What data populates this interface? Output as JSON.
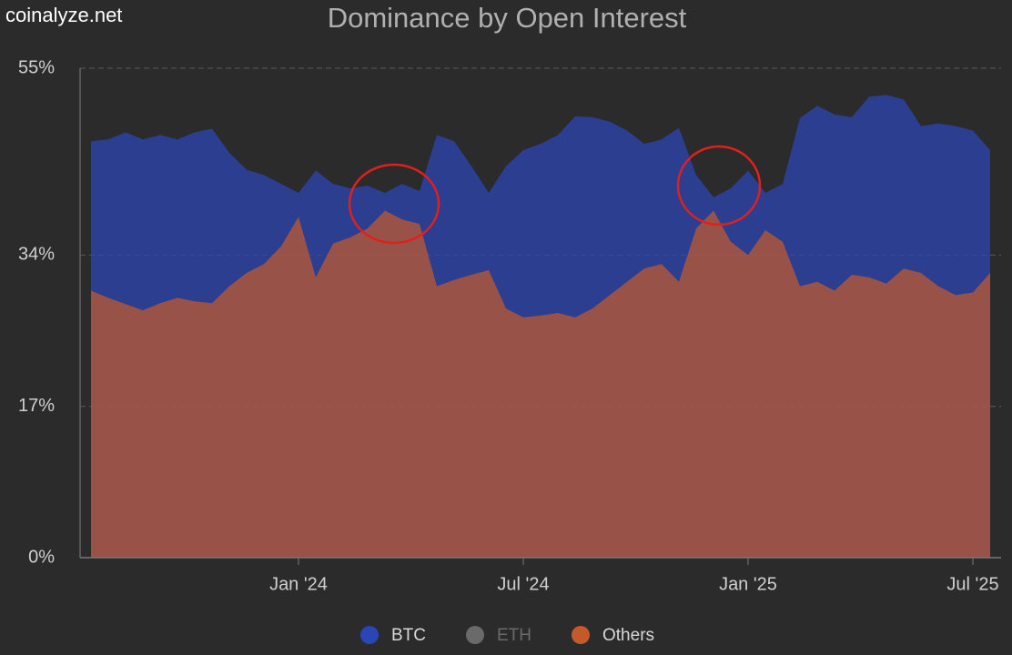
{
  "chart_data": {
    "type": "area",
    "title": "Dominance by Open Interest",
    "watermark": "coinalyze.net",
    "categories": [
      null,
      null,
      null,
      null,
      null,
      null,
      null,
      null,
      null,
      null,
      null,
      null,
      "Jan '24",
      null,
      null,
      null,
      null,
      null,
      null,
      null,
      null,
      null,
      null,
      null,
      null,
      "Jul '24",
      null,
      null,
      null,
      null,
      null,
      null,
      null,
      null,
      null,
      null,
      null,
      null,
      "Jan '25",
      null,
      null,
      null,
      null,
      null,
      null,
      null,
      null,
      null,
      null,
      null,
      null,
      "Jul '25",
      null
    ],
    "ylim": [
      0,
      55
    ],
    "yticks": [
      {
        "value": 0,
        "label": "0%"
      },
      {
        "value": 17,
        "label": "17%"
      },
      {
        "value": 34,
        "label": "34%"
      },
      {
        "value": 55,
        "label": "55%"
      }
    ],
    "grid": true,
    "series": [
      {
        "name": "BTC",
        "color": "#2b45b5",
        "visible": true,
        "values": [
          46.8,
          47.0,
          47.8,
          47.0,
          47.5,
          47.0,
          47.8,
          48.2,
          45.5,
          43.6,
          43.0,
          42.0,
          41.0,
          43.5,
          42.0,
          41.5,
          41.8,
          41.0,
          42.0,
          41.2,
          47.5,
          46.8,
          44.0,
          41.0,
          44.0,
          45.8,
          46.5,
          47.5,
          49.6,
          49.5,
          49.0,
          48.0,
          46.5,
          47.0,
          48.3,
          43.0,
          40.5,
          41.5,
          43.5,
          41.0,
          42.0,
          49.4,
          50.8,
          49.8,
          49.5,
          51.8,
          52.0,
          51.5,
          48.5,
          48.8,
          48.5,
          48.0,
          45.8
        ]
      },
      {
        "name": "ETH",
        "color": "#6a6a6a",
        "visible": false,
        "values": [
          null,
          null,
          null,
          null,
          null,
          null,
          null,
          null,
          null,
          null,
          null,
          null,
          null,
          null,
          null,
          null,
          null,
          null,
          null,
          null,
          null,
          null,
          null,
          null,
          null,
          null,
          null,
          null,
          null,
          null,
          null,
          null,
          null,
          null,
          null,
          null,
          null,
          null,
          null,
          null,
          null,
          null,
          null,
          null,
          null,
          null,
          null,
          null,
          null,
          null,
          null,
          null,
          null
        ]
      },
      {
        "name": "Others",
        "color": "#c45a2c",
        "visible": true,
        "values": [
          30.0,
          29.2,
          28.5,
          27.8,
          28.6,
          29.2,
          28.8,
          28.6,
          30.5,
          32.0,
          33.0,
          35.0,
          38.3,
          31.5,
          35.3,
          36.0,
          37.0,
          39.0,
          38.0,
          37.5,
          30.5,
          31.2,
          31.8,
          32.3,
          28.0,
          27.0,
          27.2,
          27.5,
          27.0,
          28.0,
          29.5,
          31.0,
          32.5,
          33.0,
          31.0,
          37.0,
          39.0,
          35.5,
          34.0,
          36.8,
          35.5,
          30.5,
          31.0,
          30.0,
          31.8,
          31.5,
          30.8,
          32.5,
          32.0,
          30.5,
          29.5,
          29.8,
          32.0
        ]
      }
    ]
  }
}
